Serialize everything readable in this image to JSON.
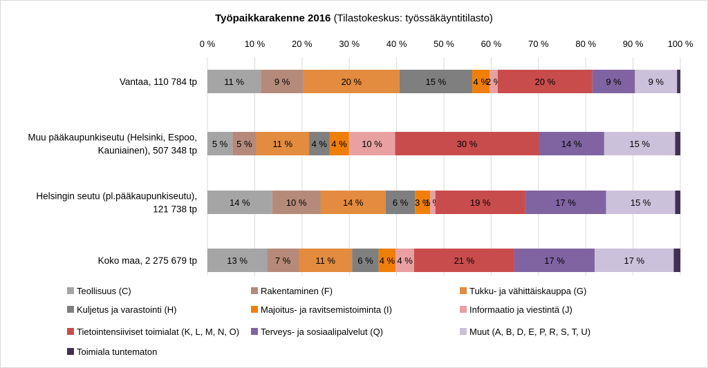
{
  "chart_data": {
    "type": "bar",
    "orientation": "horizontal",
    "stacked": "percent",
    "title": "Työpaikkarakenne 2016",
    "subtitle": "(Tilastokeskus: työssäkäyntitilasto)",
    "categories": [
      "Vantaa, 110 784 tp",
      "Muu pääkaupunkiseutu (Helsinki, Espoo, Kauniainen), 507 348 tp",
      "Helsingin seutu (pl.pääkaupunkiseutu), 121 738 tp",
      "Koko maa, 2 275 679 tp"
    ],
    "category_lines": [
      [
        "Vantaa, 110 784 tp"
      ],
      [
        "Muu pääkaupunkiseutu (Helsinki, Espoo,",
        "Kauniainen), 507 348 tp"
      ],
      [
        "Helsingin seutu (pl.pääkaupunkiseutu),",
        "121 738 tp"
      ],
      [
        "Koko maa, 2 275 679 tp"
      ]
    ],
    "x_ticks": [
      "0 %",
      "10 %",
      "20 %",
      "30 %",
      "40 %",
      "50 %",
      "60 %",
      "70 %",
      "80 %",
      "90 %",
      "100 %"
    ],
    "xlim": [
      0,
      100
    ],
    "grid": true,
    "legend_position": "bottom",
    "series": [
      {
        "name": "Teollisuus (C)",
        "color": "#a5a5a5",
        "values": [
          11.3,
          5.3,
          13.7,
          12.6
        ]
      },
      {
        "name": "Rakentaminen (F)",
        "color": "#b58a7a",
        "values": [
          9.0,
          5.0,
          10.2,
          6.7
        ]
      },
      {
        "name": "Tukku- ja vähittäiskauppa (G)",
        "color": "#e38b3e",
        "values": [
          20.3,
          11.2,
          13.8,
          11.3
        ]
      },
      {
        "name": "Kuljetus ja varastointi (H)",
        "color": "#7f7f7f",
        "values": [
          15.4,
          4.3,
          6.2,
          5.6
        ]
      },
      {
        "name": "Majoitus- ja ravitsemistoiminta (I)",
        "color": "#f07f09",
        "values": [
          3.7,
          4.1,
          3.2,
          3.6
        ]
      },
      {
        "name": "Informaatio ja viestintä (J)",
        "color": "#e8a0a0",
        "values": [
          1.7,
          9.8,
          1.1,
          3.9
        ]
      },
      {
        "name": "Tietointensiiviset toimialat (K, L, M, N, O)",
        "color": "#c94c4c",
        "values": [
          20.0,
          30.4,
          19.0,
          21.2
        ]
      },
      {
        "name": "Terveys- ja sosiaalipalvelut (Q)",
        "color": "#8064a2",
        "values": [
          9.0,
          13.8,
          17.1,
          17.0
        ]
      },
      {
        "name": "Muut (A, B, D, E, P, R, S, T, U)",
        "color": "#ccc1da",
        "values": [
          8.9,
          15.0,
          14.6,
          16.7
        ]
      },
      {
        "name": "Toimiala tuntematon",
        "color": "#403151",
        "values": [
          0.7,
          1.1,
          1.1,
          1.4
        ]
      }
    ],
    "data_labels": [
      [
        "11 %",
        "9 %",
        "20 %",
        "15 %",
        "4 %",
        "2 %",
        "20 %",
        "9 %",
        "9 %",
        ""
      ],
      [
        "5 %",
        "5 %",
        "11 %",
        "4 %",
        "4 %",
        "10 %",
        "30 %",
        "14 %",
        "15 %",
        ""
      ],
      [
        "14 %",
        "10 %",
        "14 %",
        "6 %",
        "3 %",
        "1 %",
        "19 %",
        "17 %",
        "15 %",
        ""
      ],
      [
        "13 %",
        "7 %",
        "11 %",
        "6 %",
        "4 %",
        "4 %",
        "21 %",
        "17 %",
        "17 %",
        ""
      ]
    ]
  }
}
